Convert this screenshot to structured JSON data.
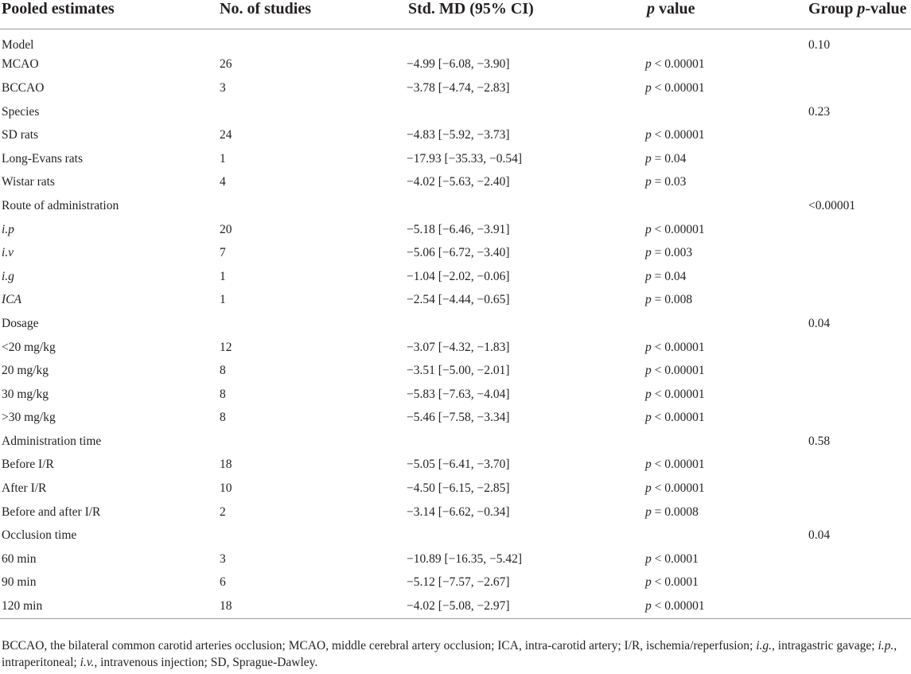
{
  "headers": {
    "col1": "Pooled estimates",
    "col2": "No. of studies",
    "col3": "Std. MD (95% CI)",
    "col4_p": "p",
    "col4_rest": " value",
    "col5_pre": "Group ",
    "col5_p": "p",
    "col5_post": "-value"
  },
  "rows": [
    {
      "label": "Model",
      "italic": false,
      "studies": "",
      "smd": "",
      "p_sym": "",
      "p_op": "",
      "p_val": "",
      "group": "0.10"
    },
    {
      "label": "MCAO",
      "italic": false,
      "studies": "26",
      "smd": "−4.99 [−6.08, −3.90]",
      "p_sym": "p",
      "p_op": " < ",
      "p_val": "0.00001",
      "group": ""
    },
    {
      "label": "BCCAO",
      "italic": false,
      "studies": "3",
      "smd": "−3.78 [−4.74, −2.83]",
      "p_sym": "p",
      "p_op": " < ",
      "p_val": "0.00001",
      "group": ""
    },
    {
      "label": "Species",
      "italic": false,
      "studies": "",
      "smd": "",
      "p_sym": "",
      "p_op": "",
      "p_val": "",
      "group": "0.23"
    },
    {
      "label": "SD rats",
      "italic": false,
      "studies": "24",
      "smd": "−4.83 [−5.92, −3.73]",
      "p_sym": "p",
      "p_op": " < ",
      "p_val": "0.00001",
      "group": ""
    },
    {
      "label": "Long-Evans rats",
      "italic": false,
      "studies": "1",
      "smd": "−17.93 [−35.33, −0.54]",
      "p_sym": "p",
      "p_op": " = ",
      "p_val": "0.04",
      "group": ""
    },
    {
      "label": "Wistar rats",
      "italic": false,
      "studies": "4",
      "smd": "−4.02 [−5.63, −2.40]",
      "p_sym": "p",
      "p_op": " = ",
      "p_val": "0.03",
      "group": ""
    },
    {
      "label": "Route of administration",
      "italic": false,
      "studies": "",
      "smd": "",
      "p_sym": "",
      "p_op": "",
      "p_val": "",
      "group": "<0.00001"
    },
    {
      "label": "i.p",
      "italic": true,
      "studies": "20",
      "smd": "−5.18 [−6.46, −3.91]",
      "p_sym": "p",
      "p_op": " < ",
      "p_val": "0.00001",
      "group": ""
    },
    {
      "label": "i.v",
      "italic": true,
      "studies": "7",
      "smd": "−5.06 [−6.72, −3.40]",
      "p_sym": "p",
      "p_op": " = ",
      "p_val": "0.003",
      "group": ""
    },
    {
      "label": "i.g",
      "italic": true,
      "studies": "1",
      "smd": "−1.04 [−2.02, −0.06]",
      "p_sym": "p",
      "p_op": " = ",
      "p_val": "0.04",
      "group": ""
    },
    {
      "label": "ICA",
      "italic": true,
      "studies": "1",
      "smd": "−2.54 [−4.44, −0.65]",
      "p_sym": "p",
      "p_op": " = ",
      "p_val": "0.008",
      "group": ""
    },
    {
      "label": "Dosage",
      "italic": false,
      "studies": "",
      "smd": "",
      "p_sym": "",
      "p_op": "",
      "p_val": "",
      "group": "0.04"
    },
    {
      "label": "<20 mg/kg",
      "italic": false,
      "studies": "12",
      "smd": "−3.07 [−4.32, −1.83]",
      "p_sym": "p",
      "p_op": " < ",
      "p_val": "0.00001",
      "group": ""
    },
    {
      "label": "20 mg/kg",
      "italic": false,
      "studies": "8",
      "smd": "−3.51 [−5.00, −2.01]",
      "p_sym": "p",
      "p_op": " < ",
      "p_val": "0.00001",
      "group": ""
    },
    {
      "label": "30 mg/kg",
      "italic": false,
      "studies": "8",
      "smd": "−5.83 [−7.63, −4.04]",
      "p_sym": "p",
      "p_op": " < ",
      "p_val": "0.00001",
      "group": ""
    },
    {
      "label": ">30 mg/kg",
      "italic": false,
      "studies": "8",
      "smd": "−5.46 [−7.58, −3.34]",
      "p_sym": "p",
      "p_op": " < ",
      "p_val": "0.00001",
      "group": ""
    },
    {
      "label": "Administration time",
      "italic": false,
      "studies": "",
      "smd": "",
      "p_sym": "",
      "p_op": "",
      "p_val": "",
      "group": "0.58"
    },
    {
      "label": "Before I/R",
      "italic": false,
      "studies": "18",
      "smd": "−5.05 [−6.41, −3.70]",
      "p_sym": "p",
      "p_op": " < ",
      "p_val": "0.00001",
      "group": ""
    },
    {
      "label": "After I/R",
      "italic": false,
      "studies": "10",
      "smd": "−4.50 [−6.15, −2.85]",
      "p_sym": "p",
      "p_op": " < ",
      "p_val": "0.00001",
      "group": ""
    },
    {
      "label": "Before and after I/R",
      "italic": false,
      "studies": "2",
      "smd": "−3.14 [−6.62, −0.34]",
      "p_sym": "p",
      "p_op": " = ",
      "p_val": "0.0008",
      "group": ""
    },
    {
      "label": "Occlusion time",
      "italic": false,
      "studies": "",
      "smd": "",
      "p_sym": "",
      "p_op": "",
      "p_val": "",
      "group": "0.04"
    },
    {
      "label": "60 min",
      "italic": false,
      "studies": "3",
      "smd": "−10.89 [−16.35, −5.42]",
      "p_sym": "p",
      "p_op": " < ",
      "p_val": "0.0001",
      "group": ""
    },
    {
      "label": "90 min",
      "italic": false,
      "studies": "6",
      "smd": "−5.12 [−7.57, −2.67]",
      "p_sym": "p",
      "p_op": " < ",
      "p_val": "0.0001",
      "group": ""
    },
    {
      "label": "120 min",
      "italic": false,
      "studies": "18",
      "smd": "−4.02 [−5.08, −2.97]",
      "p_sym": "p",
      "p_op": " < ",
      "p_val": "0.00001",
      "group": ""
    }
  ],
  "footnote": {
    "part1": "BCCAO, the bilateral common carotid arteries occlusion; MCAO, middle cerebral artery occlusion; ICA, intra-carotid artery; I/R, ischemia/reperfusion; ",
    "ig": "i.g.",
    "part2": ", intragastric gavage; ",
    "ip": "i.p.",
    "part3": ", intraperitoneal; ",
    "iv": "i.v.",
    "part4": ", intravenous injection; SD, Sprague-Dawley."
  }
}
